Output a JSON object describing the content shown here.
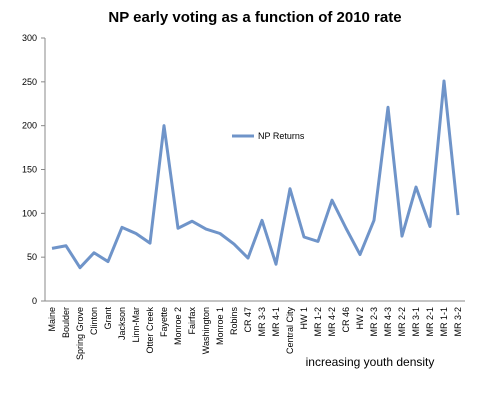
{
  "chart_data": {
    "type": "line",
    "title": "NP  early voting as a function of 2010 rate",
    "x_label": "increasing youth density",
    "categories": [
      "Maine",
      "Boulder",
      "Spring Grove",
      "Clinton",
      "Grant",
      "Jackson",
      "Linn-Mar",
      "Otter Creek",
      "Fayette",
      "Monroe 2",
      "Fairfax",
      "Washington",
      "Monroe 1",
      "Robins",
      "CR 47",
      "MR 3-3",
      "MR 4-1",
      "Central City",
      "HW 1",
      "MR 1-2",
      "MR 4-2",
      "CR 46",
      "HW 2",
      "MR 2-3",
      "MR 4-3",
      "MR 2-2",
      "MR 3-1",
      "MR 2-1",
      "MR 1-1",
      "MR 3-2"
    ],
    "series": [
      {
        "name": "NP Returns",
        "color": "#6f94c9",
        "values": [
          60,
          63,
          38,
          55,
          45,
          84,
          77,
          66,
          200,
          83,
          91,
          82,
          77,
          65,
          49,
          92,
          42,
          128,
          73,
          68,
          115,
          83,
          53,
          92,
          221,
          74,
          130,
          85,
          251,
          98
        ]
      }
    ],
    "ylim": [
      0,
      300
    ],
    "yticks": [
      0,
      50,
      100,
      150,
      200,
      250,
      300
    ],
    "grid": false,
    "legend": "center"
  }
}
